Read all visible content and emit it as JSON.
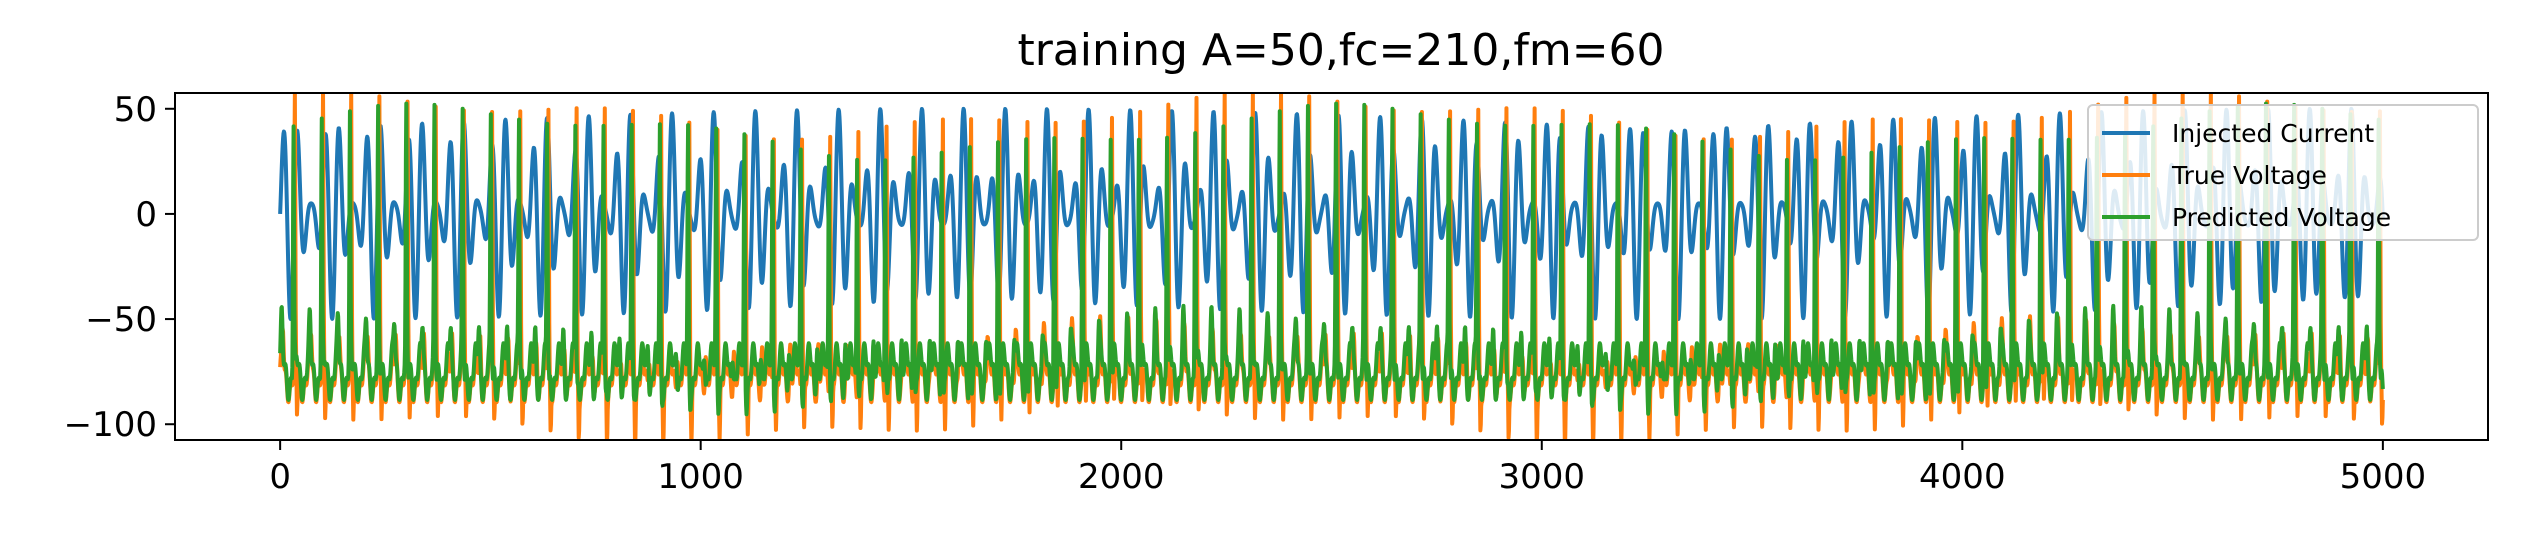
{
  "chart_data": {
    "type": "line",
    "title": "training A=50,fc=210,fm=60",
    "xlabel": "",
    "ylabel": "",
    "xlim": [
      -250,
      5250
    ],
    "ylim": [
      -107.5,
      57.5
    ],
    "x_ticks": [
      0,
      1000,
      2000,
      3000,
      4000,
      5000
    ],
    "x_tick_labels": [
      "0",
      "1000",
      "2000",
      "3000",
      "4000",
      "5000"
    ],
    "y_ticks": [
      50,
      0,
      -50,
      -100
    ],
    "y_tick_labels": [
      "50",
      "0",
      "−50",
      "−100"
    ],
    "grid": false,
    "legend_position": "upper right",
    "x_range": [
      0,
      5000
    ],
    "series": [
      {
        "name": "Injected Current",
        "color": "#1f77b4",
        "kind": "am_signal",
        "amplitude": 50,
        "carrier_period_samples": 33,
        "modulation_period_samples": 100
      },
      {
        "name": "True Voltage",
        "color": "#ff7f0e",
        "kind": "spiking_response",
        "rest_level": -78,
        "peak_level": 48,
        "trough_level": -100,
        "spike_period_samples": 67
      },
      {
        "name": "Predicted Voltage",
        "color": "#2ca02c",
        "kind": "spiking_response",
        "rest_level": -75,
        "peak_level": 40,
        "trough_level": -82,
        "spike_period_samples": 67
      }
    ]
  }
}
